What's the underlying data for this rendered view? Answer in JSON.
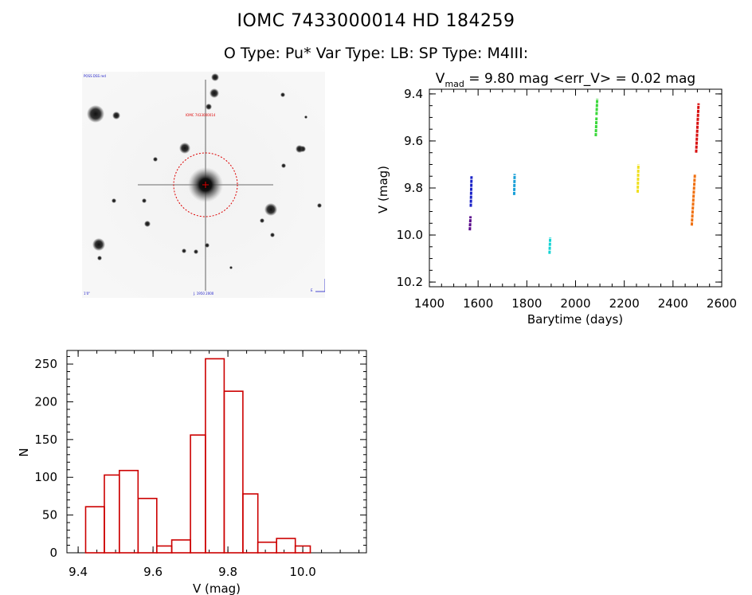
{
  "header": {
    "line1": "IOMC 7433000014    HD 184259",
    "line2": "O Type: Pu*  Var Type: LB:  SP Type: M4III:"
  },
  "finder": {
    "corner_tl": "POSS DSS red",
    "center_label": "IOMC 7433000014",
    "corner_bl": "1'0\"",
    "bottom_label": "J. 1950 2000",
    "corner_br": "E"
  },
  "chart_data": [
    {
      "type": "scatter",
      "title_prefix": "V",
      "title_subscript": "mad",
      "title_rest": " = 9.80 mag <err_V> = 0.02 mag",
      "xlabel": "Barytime (days)",
      "ylabel": "V (mag)",
      "xlim": [
        1400,
        2600
      ],
      "ylim": [
        10.22,
        9.38
      ],
      "y_inverted": true,
      "x_ticks": [
        1400,
        1600,
        1800,
        2000,
        2200,
        2400,
        2600
      ],
      "x_tick_labels": [
        "1400",
        "1600",
        "1800",
        "2000",
        "2200",
        "2400",
        "2600"
      ],
      "y_ticks": [
        9.4,
        9.6,
        9.8,
        10.0,
        10.2
      ],
      "y_tick_labels": [
        "9.4",
        "9.6",
        "9.8",
        "10.0",
        "10.2"
      ],
      "series": [
        {
          "color": "#5a0a8c",
          "x_start": 1566,
          "x_end": 1569,
          "y_top": 9.92,
          "y_bottom": 9.98
        },
        {
          "color": "#1a22c8",
          "x_start": 1570,
          "x_end": 1573,
          "y_top": 9.75,
          "y_bottom": 9.88
        },
        {
          "color": "#1aa0d8",
          "x_start": 1748,
          "x_end": 1750,
          "y_top": 9.74,
          "y_bottom": 9.83
        },
        {
          "color": "#14d4d4",
          "x_start": 1893,
          "x_end": 1896,
          "y_top": 10.01,
          "y_bottom": 10.08
        },
        {
          "color": "#3ad83a",
          "x_start": 2083,
          "x_end": 2086,
          "y_top": 9.5,
          "y_bottom": 9.58
        },
        {
          "color": "#3ad83a",
          "x_start": 2086,
          "x_end": 2089,
          "y_top": 9.42,
          "y_bottom": 9.49
        },
        {
          "color": "#f0e020",
          "x_start": 2255,
          "x_end": 2258,
          "y_top": 9.7,
          "y_bottom": 9.82
        },
        {
          "color": "#f07010",
          "x_start": 2477,
          "x_end": 2490,
          "y_top": 9.74,
          "y_bottom": 9.96
        },
        {
          "color": "#d81010",
          "x_start": 2495,
          "x_end": 2505,
          "y_top": 9.44,
          "y_bottom": 9.65
        }
      ]
    },
    {
      "type": "bar",
      "subtype": "histogram",
      "xlabel": "V (mag)",
      "ylabel": "N",
      "xlim": [
        9.37,
        10.17
      ],
      "ylim": [
        0,
        268
      ],
      "x_ticks": [
        9.4,
        9.6,
        9.8,
        10.0
      ],
      "x_tick_labels": [
        "9.4",
        "9.6",
        "9.8",
        "10.0"
      ],
      "y_ticks": [
        0,
        50,
        100,
        150,
        200,
        250
      ],
      "y_tick_labels": [
        "0",
        "50",
        "100",
        "150",
        "200",
        "250"
      ],
      "bin_edges": [
        9.42,
        9.47,
        9.51,
        9.56,
        9.61,
        9.65,
        9.7,
        9.74,
        9.79,
        9.84,
        9.88,
        9.93,
        9.98,
        10.02,
        10.07,
        10.12
      ],
      "values": [
        61,
        103,
        109,
        72,
        9,
        17,
        156,
        257,
        214,
        78,
        14,
        19,
        9,
        0,
        0
      ],
      "bar_color": "#cc0000"
    }
  ]
}
